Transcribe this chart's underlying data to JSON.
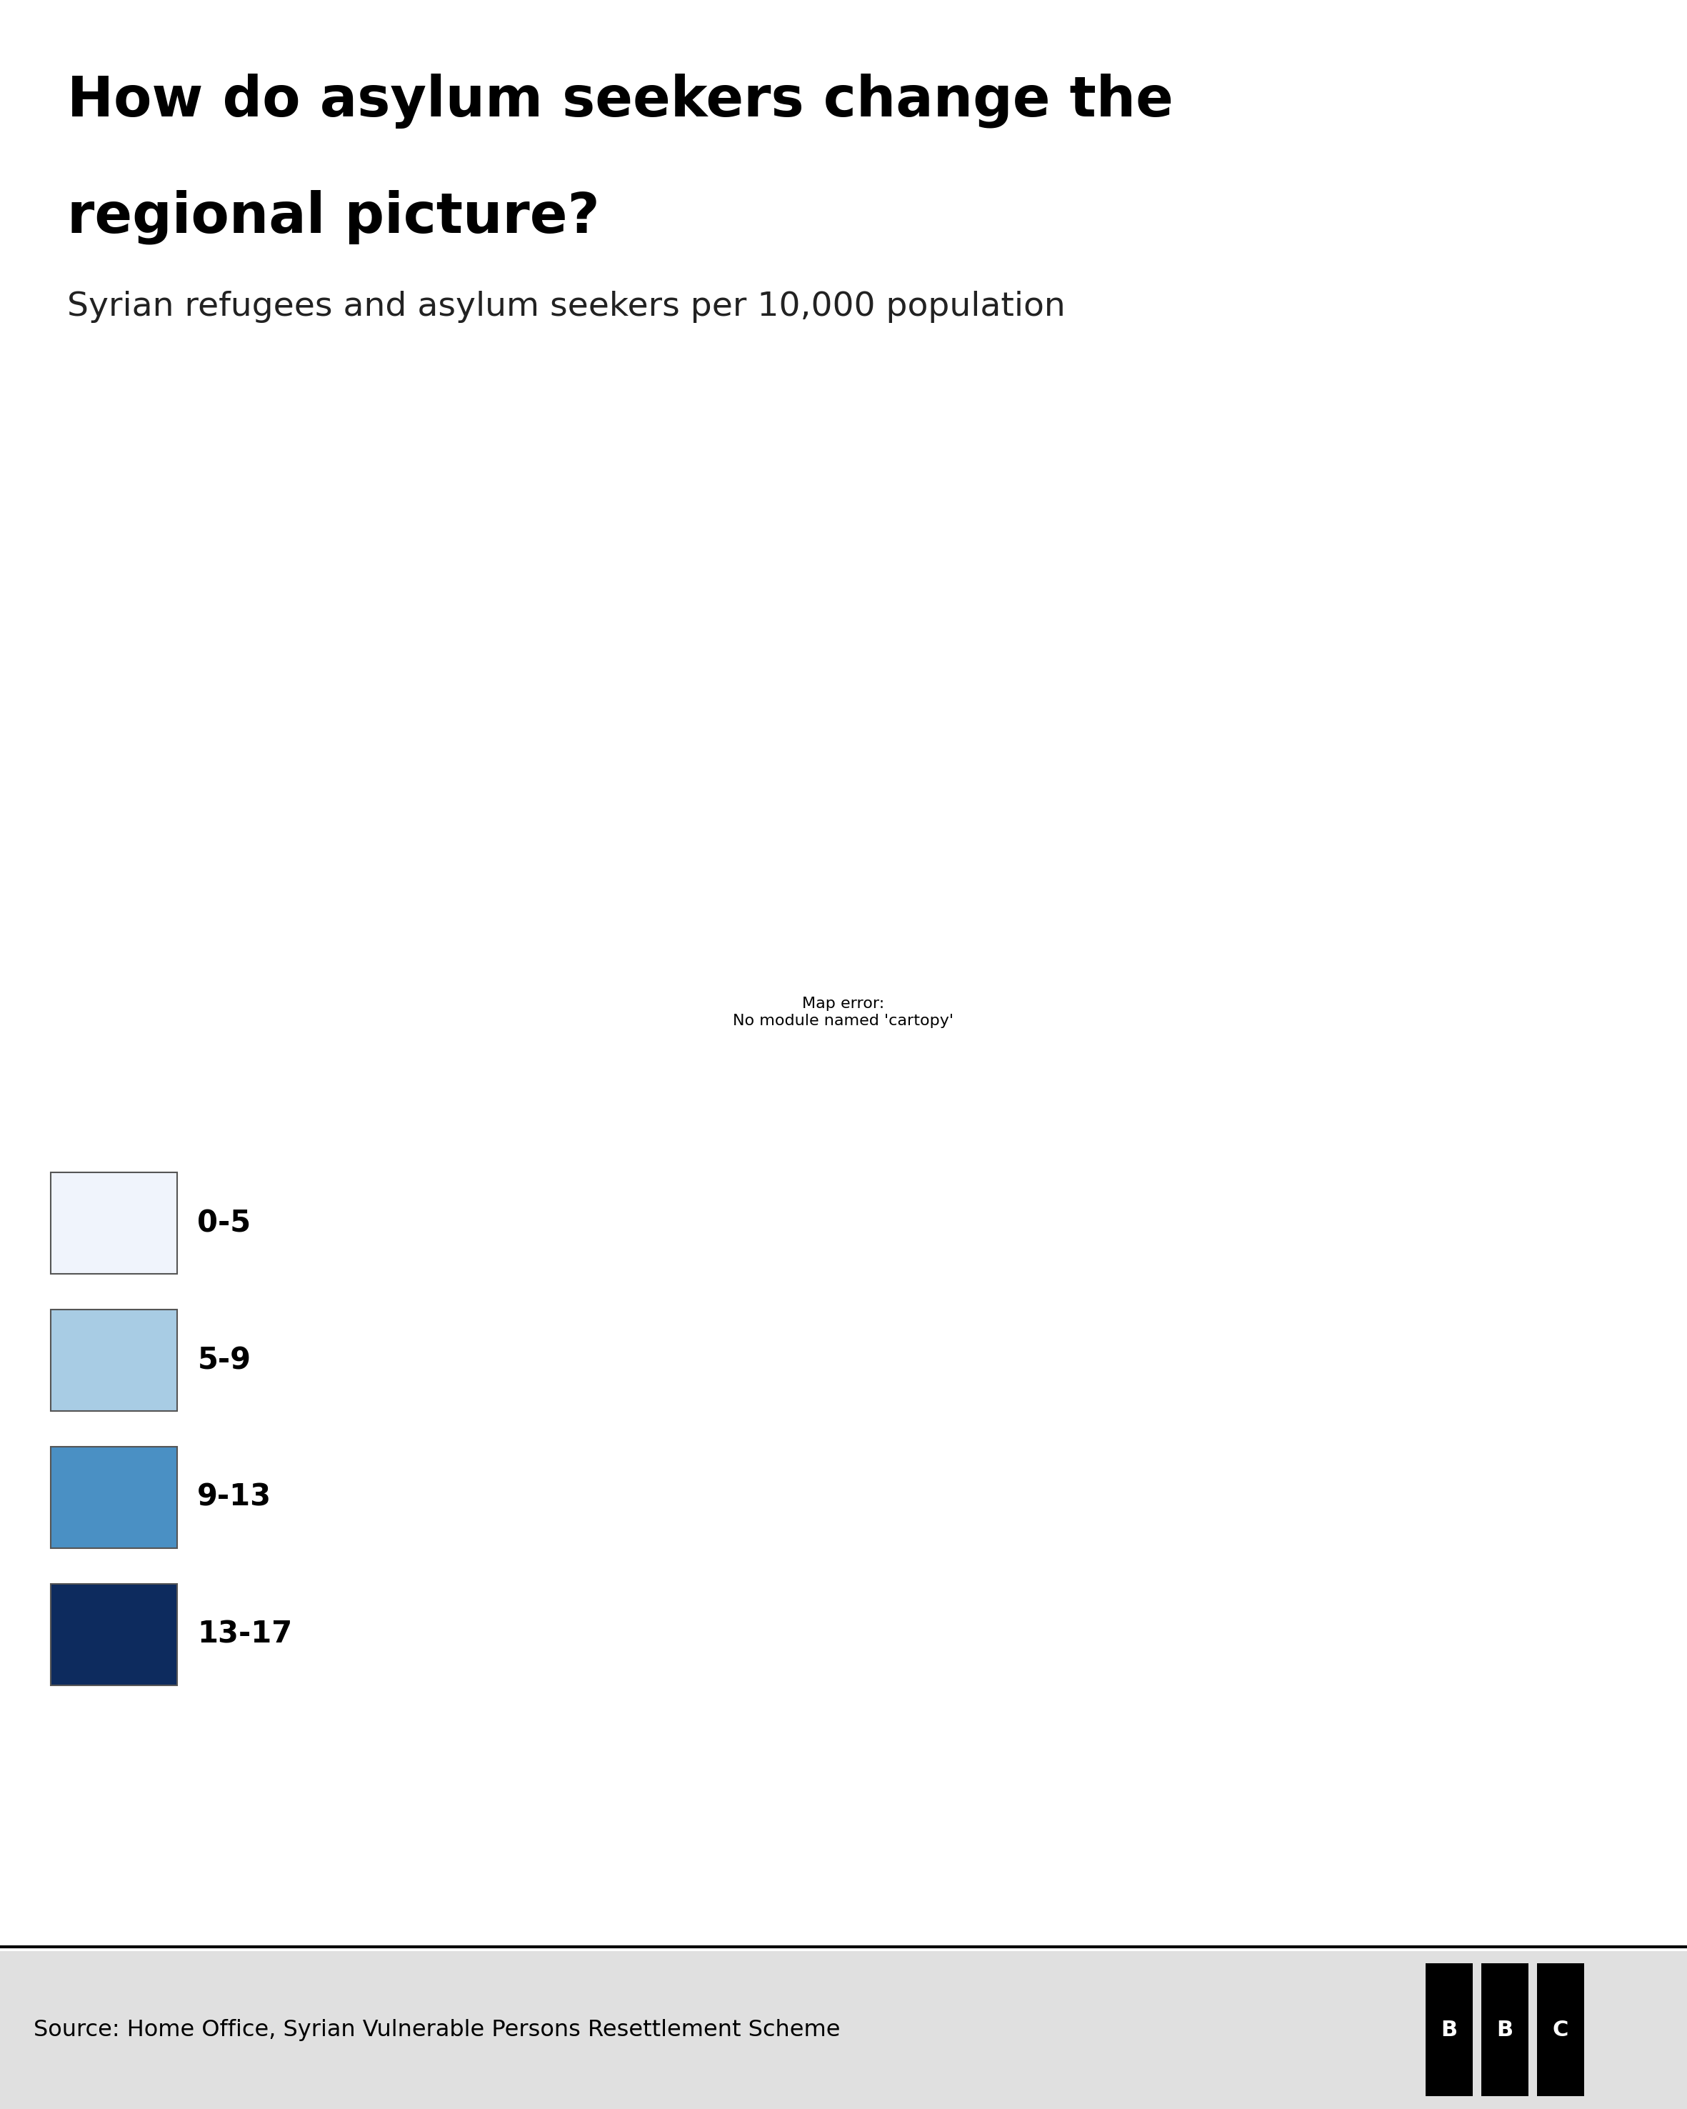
{
  "title_line1": "How do asylum seekers change the",
  "title_line2": "regional picture?",
  "subtitle": "Syrian refugees and asylum seekers per 10,000 population",
  "source": "Source: Home Office, Syrian Vulnerable Persons Resettlement Scheme",
  "legend_labels": [
    "0-5",
    "5-9",
    "9-13",
    "13-17"
  ],
  "legend_colors": [
    "#f0f4fc",
    "#a8cce4",
    "#4a90c4",
    "#0d2b5e"
  ],
  "background_color": "#ffffff",
  "border_color": "#333333",
  "footer_bg": "#e0e0e0",
  "region_colors": {
    "Northern Ireland": "#a8cce4",
    "Scotland": "#4a90c4",
    "North East England": "#0d2b5e",
    "North West England": "#4a90c4",
    "Yorkshire and the Humber": "#0d2b5e",
    "East Midlands": "#0d2b5e",
    "West Midlands": "#0d2b5e",
    "Wales": "#4a90c4",
    "East of England": "#a8cce4",
    "London": "#a8cce4",
    "South East England": "#f0f4fc",
    "South West England": "#4a90c4"
  },
  "map_xlim": [
    -8.7,
    2.1
  ],
  "map_ylim": [
    49.8,
    61.8
  ]
}
